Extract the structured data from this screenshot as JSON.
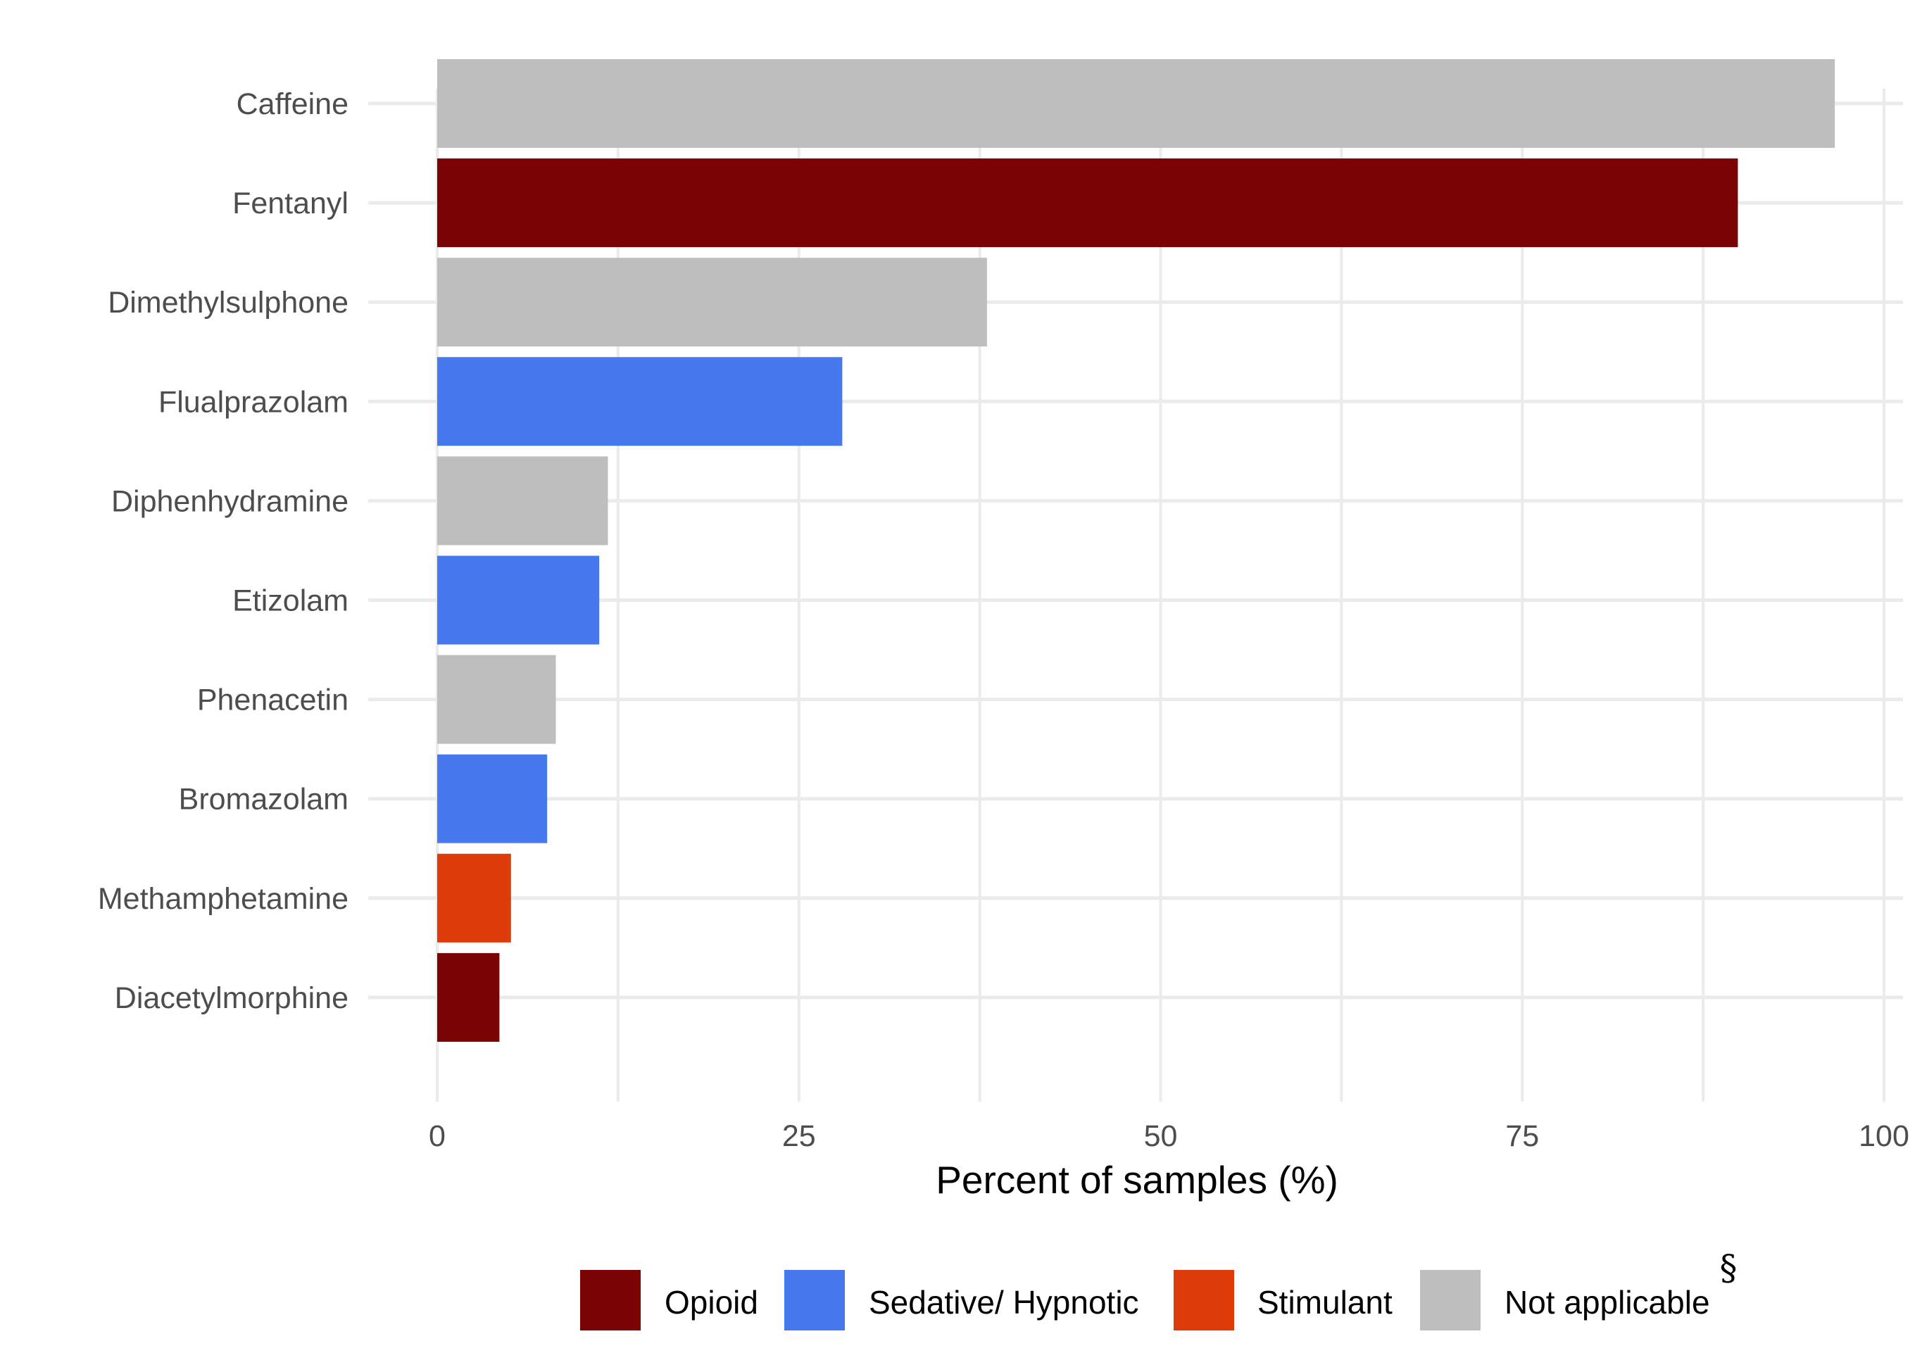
{
  "chart_data": {
    "type": "bar",
    "orientation": "horizontal",
    "title": "",
    "xlabel": "Percent of samples (%)",
    "ylabel": "",
    "xlim": [
      0,
      100
    ],
    "x_ticks": [
      0,
      25,
      50,
      75,
      100
    ],
    "grid": true,
    "legend_position": "bottom",
    "categories": [
      "Caffeine",
      "Fentanyl",
      "Dimethylsulphone",
      "Flualprazolam",
      "Diphenhydramine",
      "Etizolam",
      "Phenacetin",
      "Bromazolam",
      "Methamphetamine",
      "Diacetylmorphine"
    ],
    "values": [
      96.6,
      89.9,
      38.0,
      28.0,
      11.8,
      11.2,
      8.2,
      7.6,
      5.1,
      4.3
    ],
    "groups": [
      "Not applicable",
      "Opioid",
      "Not applicable",
      "Sedative/ Hypnotic",
      "Not applicable",
      "Sedative/ Hypnotic",
      "Not applicable",
      "Sedative/ Hypnotic",
      "Stimulant",
      "Opioid"
    ],
    "legend": [
      {
        "name": "Opioid",
        "color": "#7a0306"
      },
      {
        "name": "Sedative/ Hypnotic",
        "color": "#4779ee"
      },
      {
        "name": "Stimulant",
        "color": "#dd3b09"
      },
      {
        "name": "Not applicable",
        "color": "#bebebe"
      }
    ],
    "legend_mark": "§"
  },
  "colors": {
    "grid": "#ebebeb",
    "tick_text": "#4d4d4d",
    "background": "#ffffff"
  }
}
